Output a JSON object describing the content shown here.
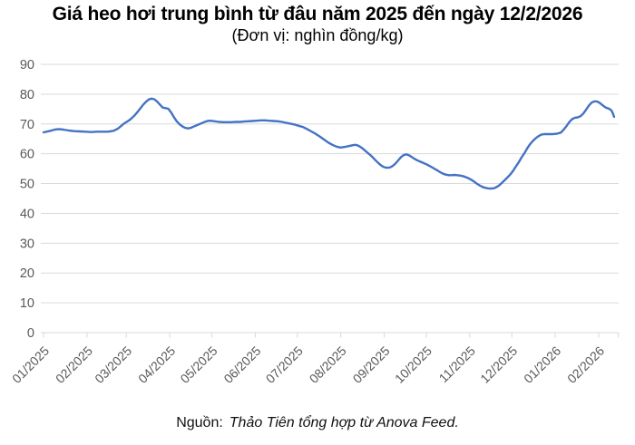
{
  "title": "Giá heo hơi trung bình từ đâu năm 2025 đến ngày 12/2/2026",
  "subtitle": "(Đơn vị: nghìn đồng/kg)",
  "source": {
    "prefix": "Nguồn:",
    "text": "Thảo Tiên tổng hợp từ Anova Feed."
  },
  "colors": {
    "line": "#4472C4",
    "gridline": "#D9D9D9",
    "tick": "#D9D9D9",
    "axis_text": "#595959",
    "title_text": "#000000"
  },
  "chart_data": {
    "type": "line",
    "title": "Giá heo hơi trung bình từ đâu năm 2025 đến ngày 12/2/2026",
    "unit": "nghìn đồng/kg",
    "xlabel": "",
    "ylabel": "",
    "ylim": [
      0,
      90
    ],
    "yticks": [
      0,
      10,
      20,
      30,
      40,
      50,
      60,
      70,
      80,
      90
    ],
    "grid": "horizontal",
    "legend": "none",
    "x_axis": {
      "kind": "date",
      "start_date": "01/01/2025",
      "end_date": "12/2/2026",
      "label_rotation_deg": -45,
      "months": [
        {
          "label": "01/2025",
          "start_day": 0
        },
        {
          "label": "02/2025",
          "start_day": 31
        },
        {
          "label": "03/2025",
          "start_day": 59
        },
        {
          "label": "04/2025",
          "start_day": 90
        },
        {
          "label": "05/2025",
          "start_day": 120
        },
        {
          "label": "06/2025",
          "start_day": 151
        },
        {
          "label": "07/2025",
          "start_day": 181
        },
        {
          "label": "08/2025",
          "start_day": 212
        },
        {
          "label": "09/2025",
          "start_day": 243
        },
        {
          "label": "10/2025",
          "start_day": 273
        },
        {
          "label": "11/2025",
          "start_day": 304
        },
        {
          "label": "12/2025",
          "start_day": 334
        },
        {
          "label": "01/2026",
          "start_day": 365
        },
        {
          "label": "02/2026",
          "start_day": 396
        }
      ],
      "axis_end_day": 410
    },
    "series": [
      {
        "name": "Giá heo hơi trung bình (nghìn đồng/kg)",
        "color": "#4472C4",
        "points": [
          [
            0,
            67.2
          ],
          [
            4,
            67.6
          ],
          [
            8,
            68.1
          ],
          [
            11,
            68.3
          ],
          [
            14,
            68.1
          ],
          [
            18,
            67.8
          ],
          [
            22,
            67.6
          ],
          [
            26,
            67.5
          ],
          [
            30,
            67.4
          ],
          [
            34,
            67.3
          ],
          [
            38,
            67.4
          ],
          [
            42,
            67.4
          ],
          [
            46,
            67.4
          ],
          [
            50,
            67.7
          ],
          [
            53,
            68.4
          ],
          [
            55,
            69.2
          ],
          [
            57,
            70.0
          ],
          [
            59,
            70.6
          ],
          [
            61,
            71.2
          ],
          [
            63,
            72.0
          ],
          [
            65,
            72.9
          ],
          [
            67,
            74.0
          ],
          [
            69,
            75.2
          ],
          [
            71,
            76.4
          ],
          [
            73,
            77.4
          ],
          [
            75,
            78.2
          ],
          [
            77,
            78.5
          ],
          [
            79,
            78.3
          ],
          [
            81,
            77.5
          ],
          [
            83,
            76.5
          ],
          [
            85,
            75.5
          ],
          [
            87,
            75.3
          ],
          [
            89,
            75.1
          ],
          [
            91,
            73.9
          ],
          [
            93,
            72.3
          ],
          [
            95,
            70.9
          ],
          [
            97,
            69.9
          ],
          [
            99,
            69.2
          ],
          [
            101,
            68.7
          ],
          [
            103,
            68.5
          ],
          [
            105,
            68.7
          ],
          [
            107,
            69.1
          ],
          [
            109,
            69.5
          ],
          [
            111,
            69.9
          ],
          [
            113,
            70.3
          ],
          [
            115,
            70.7
          ],
          [
            117,
            71.0
          ],
          [
            119,
            71.1
          ],
          [
            122,
            70.9
          ],
          [
            125,
            70.7
          ],
          [
            128,
            70.6
          ],
          [
            131,
            70.6
          ],
          [
            134,
            70.6
          ],
          [
            137,
            70.7
          ],
          [
            140,
            70.7
          ],
          [
            143,
            70.8
          ],
          [
            146,
            70.9
          ],
          [
            149,
            71.0
          ],
          [
            152,
            71.1
          ],
          [
            155,
            71.2
          ],
          [
            158,
            71.2
          ],
          [
            161,
            71.1
          ],
          [
            164,
            71.0
          ],
          [
            167,
            70.9
          ],
          [
            170,
            70.7
          ],
          [
            173,
            70.4
          ],
          [
            176,
            70.1
          ],
          [
            179,
            69.8
          ],
          [
            182,
            69.4
          ],
          [
            185,
            69.0
          ],
          [
            188,
            68.3
          ],
          [
            191,
            67.5
          ],
          [
            194,
            66.7
          ],
          [
            197,
            65.8
          ],
          [
            200,
            64.8
          ],
          [
            203,
            63.8
          ],
          [
            206,
            63.0
          ],
          [
            209,
            62.4
          ],
          [
            212,
            62.1
          ],
          [
            215,
            62.3
          ],
          [
            218,
            62.6
          ],
          [
            221,
            62.9
          ],
          [
            223,
            63.0
          ],
          [
            225,
            62.6
          ],
          [
            227,
            62.0
          ],
          [
            229,
            61.2
          ],
          [
            231,
            60.4
          ],
          [
            233,
            59.6
          ],
          [
            235,
            58.7
          ],
          [
            237,
            57.7
          ],
          [
            239,
            56.8
          ],
          [
            241,
            56.0
          ],
          [
            243,
            55.5
          ],
          [
            245,
            55.3
          ],
          [
            247,
            55.4
          ],
          [
            249,
            55.9
          ],
          [
            251,
            56.7
          ],
          [
            253,
            57.8
          ],
          [
            255,
            58.9
          ],
          [
            257,
            59.6
          ],
          [
            259,
            59.8
          ],
          [
            261,
            59.4
          ],
          [
            263,
            58.8
          ],
          [
            265,
            58.2
          ],
          [
            267,
            57.7
          ],
          [
            269,
            57.3
          ],
          [
            271,
            56.9
          ],
          [
            273,
            56.5
          ],
          [
            275,
            56.0
          ],
          [
            277,
            55.5
          ],
          [
            279,
            54.9
          ],
          [
            281,
            54.4
          ],
          [
            283,
            53.8
          ],
          [
            285,
            53.3
          ],
          [
            287,
            53.0
          ],
          [
            289,
            52.8
          ],
          [
            291,
            52.8
          ],
          [
            293,
            52.9
          ],
          [
            295,
            52.8
          ],
          [
            297,
            52.7
          ],
          [
            299,
            52.5
          ],
          [
            301,
            52.2
          ],
          [
            303,
            51.8
          ],
          [
            305,
            51.3
          ],
          [
            307,
            50.7
          ],
          [
            309,
            50.0
          ],
          [
            311,
            49.4
          ],
          [
            313,
            48.9
          ],
          [
            315,
            48.6
          ],
          [
            317,
            48.4
          ],
          [
            319,
            48.3
          ],
          [
            321,
            48.4
          ],
          [
            323,
            48.8
          ],
          [
            325,
            49.4
          ],
          [
            327,
            50.3
          ],
          [
            329,
            51.2
          ],
          [
            331,
            52.1
          ],
          [
            333,
            53.1
          ],
          [
            335,
            54.3
          ],
          [
            337,
            55.8
          ],
          [
            339,
            57.2
          ],
          [
            341,
            58.8
          ],
          [
            343,
            60.2
          ],
          [
            345,
            61.8
          ],
          [
            347,
            63.2
          ],
          [
            349,
            64.3
          ],
          [
            351,
            65.2
          ],
          [
            353,
            65.9
          ],
          [
            355,
            66.4
          ],
          [
            357,
            66.6
          ],
          [
            360,
            66.6
          ],
          [
            363,
            66.6
          ],
          [
            366,
            66.7
          ],
          [
            369,
            67.1
          ],
          [
            371,
            68.1
          ],
          [
            373,
            69.3
          ],
          [
            375,
            70.6
          ],
          [
            377,
            71.6
          ],
          [
            379,
            72.1
          ],
          [
            381,
            72.2
          ],
          [
            383,
            72.6
          ],
          [
            385,
            73.5
          ],
          [
            387,
            74.8
          ],
          [
            389,
            76.2
          ],
          [
            391,
            77.2
          ],
          [
            393,
            77.6
          ],
          [
            395,
            77.5
          ],
          [
            397,
            77.0
          ],
          [
            399,
            76.2
          ],
          [
            401,
            75.5
          ],
          [
            403,
            75.2
          ],
          [
            405,
            74.6
          ],
          [
            406,
            73.6
          ],
          [
            407,
            72.4
          ]
        ]
      }
    ]
  }
}
